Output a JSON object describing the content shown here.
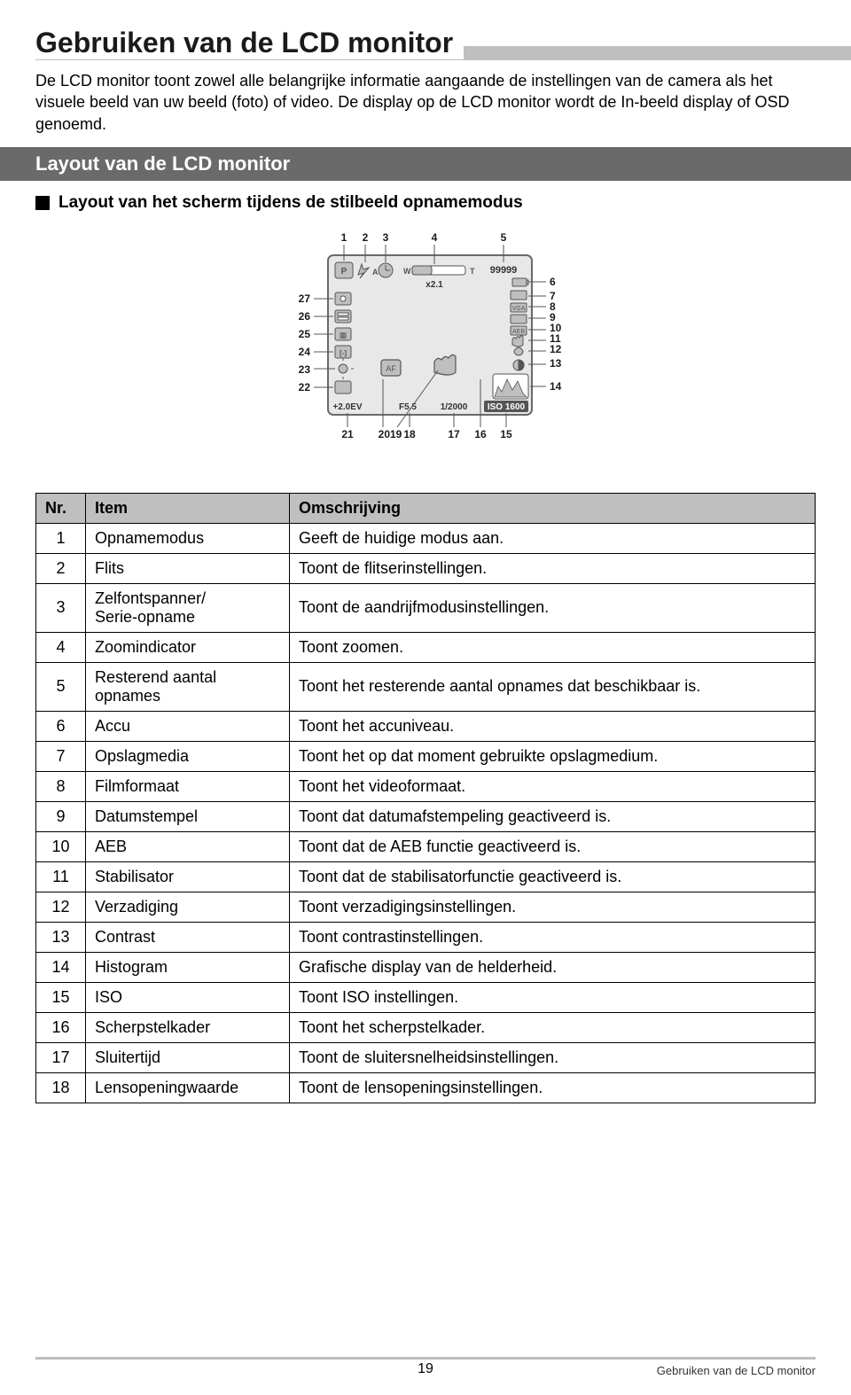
{
  "title": "Gebruiken van de LCD monitor",
  "intro": "De LCD monitor toont zowel alle belangrijke informatie aangaande de instellingen van de camera als het visuele beeld van uw beeld (foto) of video. De display op de LCD monitor wordt de In-beeld display of OSD genoemd.",
  "section_heading": "Layout van de LCD monitor",
  "sub_heading": "Layout van het scherm tijdens de stilbeeld opnamemodus",
  "lcd": {
    "top_labels": [
      "1",
      "2",
      "3",
      "4",
      "5"
    ],
    "right_labels": [
      "6",
      "7",
      "8",
      "9",
      "10",
      "11",
      "12",
      "13",
      "14"
    ],
    "bottom_labels": [
      "21",
      "2019",
      "18",
      "17",
      "16",
      "15"
    ],
    "left_labels": [
      "27",
      "26",
      "25",
      "24",
      "23",
      "22"
    ],
    "screen_text": {
      "zoom": "x2.1",
      "counter": "99999",
      "ev": "+2.0EV",
      "f": "F5.5",
      "shutter": "1/2000",
      "iso": "ISO 1600"
    },
    "colors": {
      "label_text": "#1a1a1a",
      "leader": "#555555",
      "screen_border": "#6a6a6a",
      "screen_bg": "#e8e8e8",
      "icon_fill": "#bfbfbf",
      "icon_stroke": "#555555"
    },
    "label_fontsize": 12
  },
  "table": {
    "headers": [
      "Nr.",
      "Item",
      "Omschrijving"
    ],
    "rows": [
      [
        "1",
        "Opnamemodus",
        "Geeft de huidige modus aan."
      ],
      [
        "2",
        "Flits",
        "Toont de flitserinstellingen."
      ],
      [
        "3",
        "Zelfontspanner/\nSerie-opname",
        "Toont de aandrijfmodusinstellingen."
      ],
      [
        "4",
        "Zoomindicator",
        "Toont zoomen."
      ],
      [
        "5",
        "Resterend aantal opnames",
        "Toont het resterende aantal opnames dat beschikbaar is."
      ],
      [
        "6",
        "Accu",
        "Toont het accuniveau."
      ],
      [
        "7",
        "Opslagmedia",
        "Toont het op dat moment gebruikte opslagmedium."
      ],
      [
        "8",
        "Filmformaat",
        "Toont het videoformaat."
      ],
      [
        "9",
        "Datumstempel",
        "Toont dat datumafstempeling geactiveerd is."
      ],
      [
        "10",
        "AEB",
        "Toont dat de AEB functie geactiveerd is."
      ],
      [
        "11",
        "Stabilisator",
        "Toont dat de stabilisatorfunctie geactiveerd is."
      ],
      [
        "12",
        "Verzadiging",
        "Toont verzadigingsinstellingen."
      ],
      [
        "13",
        "Contrast",
        "Toont contrastinstellingen."
      ],
      [
        "14",
        "Histogram",
        "Grafische display van de helderheid."
      ],
      [
        "15",
        "ISO",
        "Toont ISO instellingen."
      ],
      [
        "16",
        "Scherpstelkader",
        "Toont het scherpstelkader."
      ],
      [
        "17",
        "Sluitertijd",
        "Toont de sluitersnelheidsinstellingen."
      ],
      [
        "18",
        "Lensopeningwaarde",
        "Toont de lensopeningsinstellingen."
      ]
    ],
    "header_bg": "#bfbfbf",
    "border_color": "#000000",
    "fontsize": 18
  },
  "footer": {
    "page": "19",
    "right_text": "Gebruiken van de LCD monitor"
  }
}
